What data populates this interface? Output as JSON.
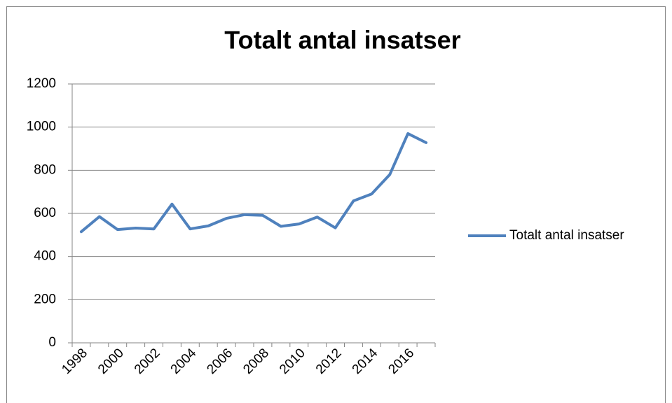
{
  "chart_data": {
    "type": "line",
    "title": "Totalt antal insatser",
    "categories": [
      "1998",
      null,
      "2000",
      null,
      "2002",
      null,
      "2004",
      null,
      "2006",
      null,
      "2008",
      null,
      "2010",
      null,
      "2012",
      null,
      "2014",
      null,
      "2016",
      null
    ],
    "series": [
      {
        "name": "Totalt antal insatser",
        "color": "#4f81bd",
        "values": [
          515,
          585,
          525,
          532,
          528,
          643,
          528,
          542,
          577,
          594,
          591,
          540,
          551,
          583,
          533,
          658,
          690,
          780,
          970,
          928
        ]
      }
    ],
    "ylim": [
      0,
      1200
    ],
    "yticks": [
      0,
      200,
      400,
      600,
      800,
      1000,
      1200
    ],
    "grid": true,
    "legend": "right"
  }
}
